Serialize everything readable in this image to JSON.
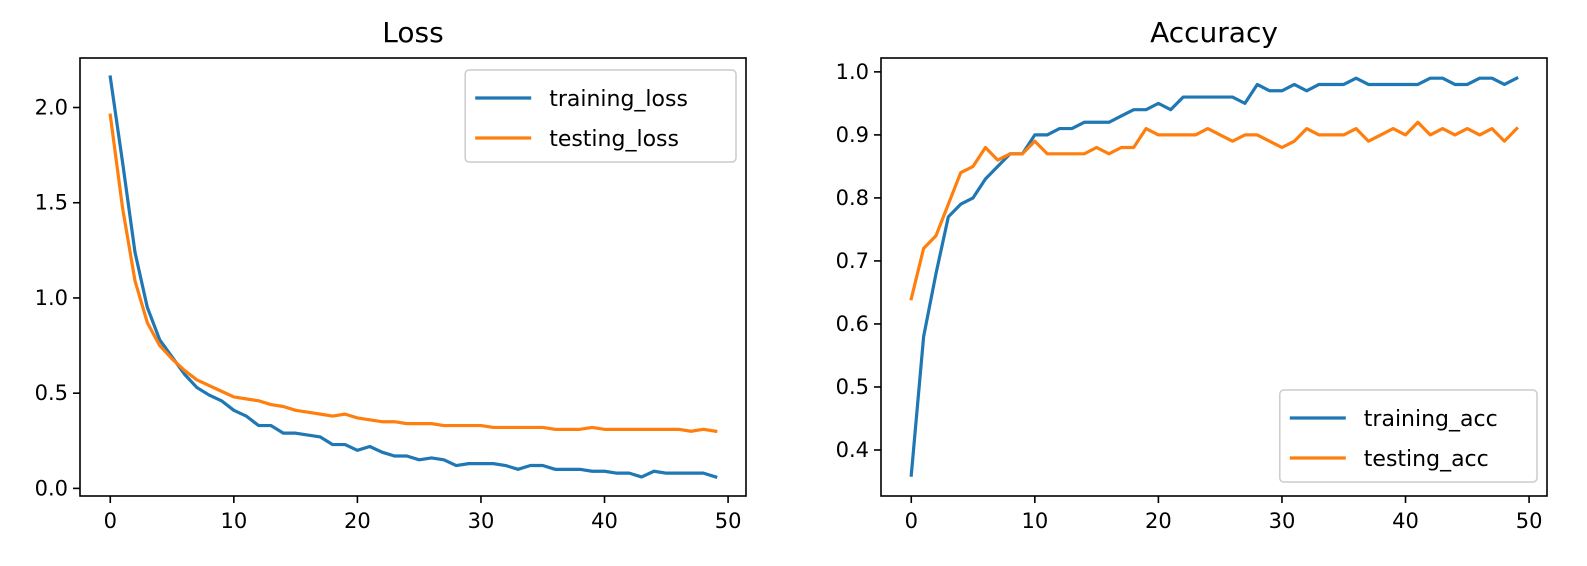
{
  "chart_data": [
    {
      "type": "line",
      "title": "Loss",
      "xlabel": "",
      "ylabel": "",
      "xlim": [
        -2.45,
        51.45
      ],
      "ylim": [
        -0.04,
        2.26
      ],
      "xticks": [
        0,
        10,
        20,
        30,
        40,
        50
      ],
      "yticks": [
        0.0,
        0.5,
        1.0,
        1.5,
        2.0
      ],
      "xtick_labels": [
        "0",
        "10",
        "20",
        "30",
        "40",
        "50"
      ],
      "ytick_labels": [
        "0.0",
        "0.5",
        "1.0",
        "1.5",
        "2.0"
      ],
      "legend_position": "top-right",
      "x": [
        0,
        1,
        2,
        3,
        4,
        5,
        6,
        7,
        8,
        9,
        10,
        11,
        12,
        13,
        14,
        15,
        16,
        17,
        18,
        19,
        20,
        21,
        22,
        23,
        24,
        25,
        26,
        27,
        28,
        29,
        30,
        31,
        32,
        33,
        34,
        35,
        36,
        37,
        38,
        39,
        40,
        41,
        42,
        43,
        44,
        45,
        46,
        47,
        48,
        49
      ],
      "series": [
        {
          "name": "training_loss",
          "color": "#1f77b4",
          "values": [
            2.16,
            1.71,
            1.24,
            0.95,
            0.78,
            0.69,
            0.6,
            0.53,
            0.49,
            0.46,
            0.41,
            0.38,
            0.33,
            0.33,
            0.29,
            0.29,
            0.28,
            0.27,
            0.23,
            0.23,
            0.2,
            0.22,
            0.19,
            0.17,
            0.17,
            0.15,
            0.16,
            0.15,
            0.12,
            0.13,
            0.13,
            0.13,
            0.12,
            0.1,
            0.12,
            0.12,
            0.1,
            0.1,
            0.1,
            0.09,
            0.09,
            0.08,
            0.08,
            0.06,
            0.09,
            0.08,
            0.08,
            0.08,
            0.08,
            0.06
          ]
        },
        {
          "name": "testing_loss",
          "color": "#ff7f0e",
          "values": [
            1.96,
            1.47,
            1.09,
            0.87,
            0.75,
            0.68,
            0.62,
            0.57,
            0.54,
            0.51,
            0.48,
            0.47,
            0.46,
            0.44,
            0.43,
            0.41,
            0.4,
            0.39,
            0.38,
            0.39,
            0.37,
            0.36,
            0.35,
            0.35,
            0.34,
            0.34,
            0.34,
            0.33,
            0.33,
            0.33,
            0.33,
            0.32,
            0.32,
            0.32,
            0.32,
            0.32,
            0.31,
            0.31,
            0.31,
            0.32,
            0.31,
            0.31,
            0.31,
            0.31,
            0.31,
            0.31,
            0.31,
            0.3,
            0.31,
            0.3
          ]
        }
      ]
    },
    {
      "type": "line",
      "title": "Accuracy",
      "xlabel": "",
      "ylabel": "",
      "xlim": [
        -2.45,
        51.45
      ],
      "ylim": [
        0.327,
        1.022
      ],
      "xticks": [
        0,
        10,
        20,
        30,
        40,
        50
      ],
      "yticks": [
        0.4,
        0.5,
        0.6,
        0.7,
        0.8,
        0.9,
        1.0
      ],
      "xtick_labels": [
        "0",
        "10",
        "20",
        "30",
        "40",
        "50"
      ],
      "ytick_labels": [
        "0.4",
        "0.5",
        "0.6",
        "0.7",
        "0.8",
        "0.9",
        "1.0"
      ],
      "legend_position": "bottom-right",
      "x": [
        0,
        1,
        2,
        3,
        4,
        5,
        6,
        7,
        8,
        9,
        10,
        11,
        12,
        13,
        14,
        15,
        16,
        17,
        18,
        19,
        20,
        21,
        22,
        23,
        24,
        25,
        26,
        27,
        28,
        29,
        30,
        31,
        32,
        33,
        34,
        35,
        36,
        37,
        38,
        39,
        40,
        41,
        42,
        43,
        44,
        45,
        46,
        47,
        48,
        49
      ],
      "series": [
        {
          "name": "training_acc",
          "color": "#1f77b4",
          "values": [
            0.36,
            0.58,
            0.68,
            0.77,
            0.79,
            0.8,
            0.83,
            0.85,
            0.87,
            0.87,
            0.9,
            0.9,
            0.91,
            0.91,
            0.92,
            0.92,
            0.92,
            0.93,
            0.94,
            0.94,
            0.95,
            0.94,
            0.96,
            0.96,
            0.96,
            0.96,
            0.96,
            0.95,
            0.98,
            0.97,
            0.97,
            0.98,
            0.97,
            0.98,
            0.98,
            0.98,
            0.99,
            0.98,
            0.98,
            0.98,
            0.98,
            0.98,
            0.99,
            0.99,
            0.98,
            0.98,
            0.99,
            0.99,
            0.98,
            0.99
          ]
        },
        {
          "name": "testing_acc",
          "color": "#ff7f0e",
          "values": [
            0.64,
            0.72,
            0.74,
            0.79,
            0.84,
            0.85,
            0.88,
            0.86,
            0.87,
            0.87,
            0.89,
            0.87,
            0.87,
            0.87,
            0.87,
            0.88,
            0.87,
            0.88,
            0.88,
            0.91,
            0.9,
            0.9,
            0.9,
            0.9,
            0.91,
            0.9,
            0.89,
            0.9,
            0.9,
            0.89,
            0.88,
            0.89,
            0.91,
            0.9,
            0.9,
            0.9,
            0.91,
            0.89,
            0.9,
            0.91,
            0.9,
            0.92,
            0.9,
            0.91,
            0.9,
            0.91,
            0.9,
            0.91,
            0.89,
            0.91
          ]
        }
      ]
    }
  ]
}
